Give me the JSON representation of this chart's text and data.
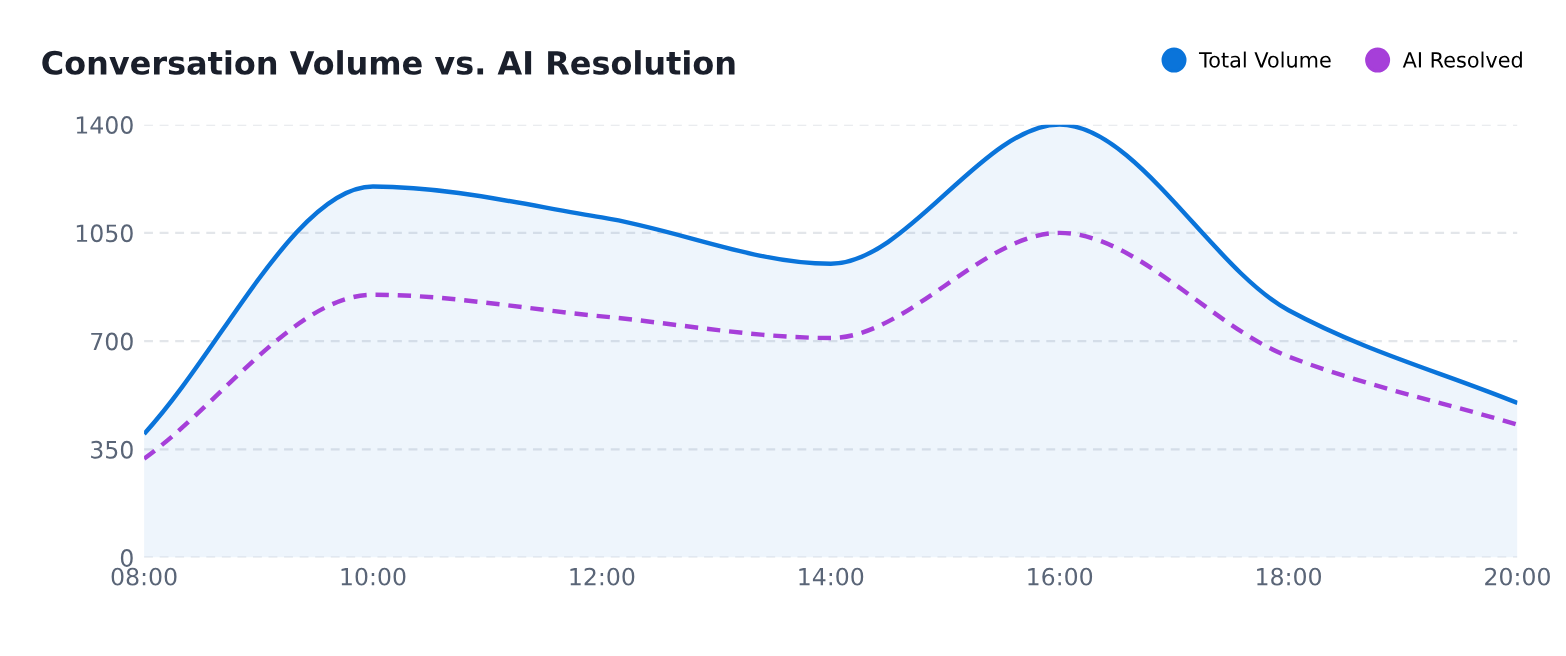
{
  "chart_data": {
    "type": "line",
    "title": "Conversation Volume vs. AI Resolution",
    "x": [
      8,
      10,
      12,
      14,
      16,
      18,
      20
    ],
    "series": [
      {
        "name": "Total Volume",
        "color": "#0a74da",
        "values": [
          400,
          1200,
          1100,
          950,
          1400,
          800,
          500
        ],
        "line_style": "solid",
        "type": "area"
      },
      {
        "name": "AI Resolved",
        "color": "#a63fd9",
        "values": [
          320,
          850,
          780,
          710,
          1050,
          650,
          430
        ],
        "line_style": "dashed"
      }
    ],
    "xlim": [
      8,
      20
    ],
    "xticks": [
      {
        "value": 8,
        "label": "08:00"
      },
      {
        "value": 10,
        "label": "10:00"
      },
      {
        "value": 12,
        "label": "12:00"
      },
      {
        "value": 14,
        "label": "14:00"
      },
      {
        "value": 16,
        "label": "16:00"
      },
      {
        "value": 18,
        "label": "18:00"
      },
      {
        "value": 20,
        "label": "20:00"
      }
    ],
    "ylim": [
      0,
      1400
    ],
    "yticks": [
      0,
      350,
      700,
      1050,
      1400
    ],
    "grid": "y",
    "legend": "top right",
    "marker": "none"
  }
}
